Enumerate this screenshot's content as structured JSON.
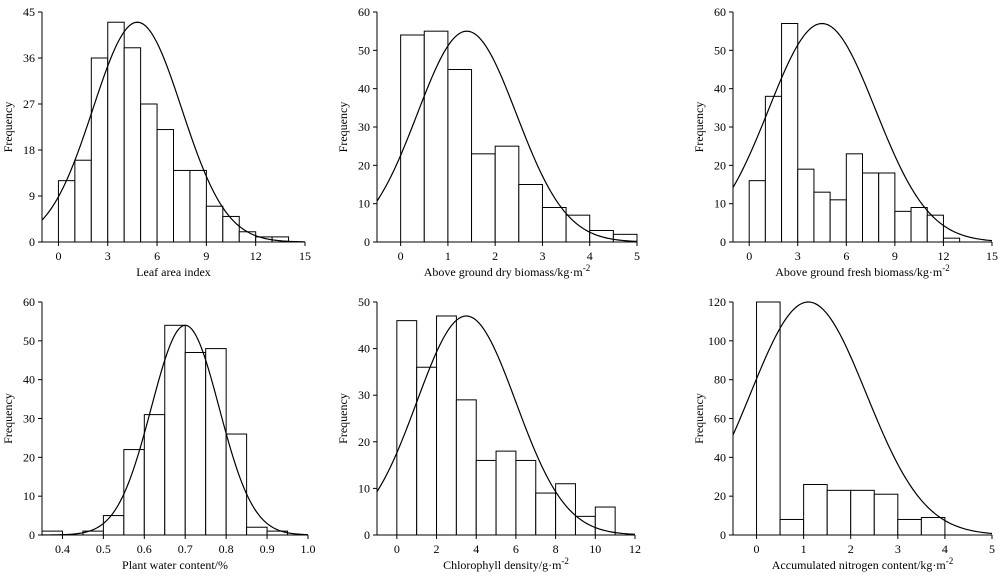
{
  "chart_data": [
    {
      "type": "histogram",
      "ylabel": "Frequency",
      "xlabel": "Leaf area index",
      "xlim": [
        -1,
        15
      ],
      "ylim": [
        0,
        45
      ],
      "xticks": [
        "0",
        "3",
        "6",
        "9",
        "12",
        "15"
      ],
      "yticks": [
        "0",
        "9",
        "18",
        "27",
        "36",
        "45"
      ],
      "bin_width": 1,
      "bins": [
        {
          "x": 0,
          "count": 12
        },
        {
          "x": 1,
          "count": 16
        },
        {
          "x": 2,
          "count": 36
        },
        {
          "x": 3,
          "count": 43
        },
        {
          "x": 4,
          "count": 38
        },
        {
          "x": 5,
          "count": 27
        },
        {
          "x": 6,
          "count": 22
        },
        {
          "x": 7,
          "count": 14
        },
        {
          "x": 8,
          "count": 14
        },
        {
          "x": 9,
          "count": 7
        },
        {
          "x": 10,
          "count": 5
        },
        {
          "x": 11,
          "count": 2
        },
        {
          "x": 12,
          "count": 1
        },
        {
          "x": 13,
          "count": 1
        }
      ],
      "normal_curve": {
        "mean": 4.8,
        "sd": 2.7,
        "peak": 43
      }
    },
    {
      "type": "histogram",
      "ylabel": "Frequency",
      "xlabel": "Above ground dry biomass/kg·m",
      "xlabel_sup": "-2",
      "xlim": [
        -0.5,
        5
      ],
      "ylim": [
        0,
        60
      ],
      "xticks": [
        "0",
        "1",
        "2",
        "3",
        "4",
        "5"
      ],
      "yticks": [
        "0",
        "10",
        "20",
        "30",
        "40",
        "50",
        "60"
      ],
      "bin_width": 0.5,
      "bins": [
        {
          "x": 0,
          "count": 54
        },
        {
          "x": 0.5,
          "count": 55
        },
        {
          "x": 1,
          "count": 45
        },
        {
          "x": 1.5,
          "count": 23
        },
        {
          "x": 2,
          "count": 25
        },
        {
          "x": 2.5,
          "count": 15
        },
        {
          "x": 3,
          "count": 9
        },
        {
          "x": 3.5,
          "count": 7
        },
        {
          "x": 4,
          "count": 3
        },
        {
          "x": 4.5,
          "count": 2
        }
      ],
      "normal_curve": {
        "mean": 1.4,
        "sd": 1.05,
        "peak": 55
      }
    },
    {
      "type": "histogram",
      "ylabel": "Frequency",
      "xlabel": "Above ground fresh biomass/kg·m",
      "xlabel_sup": "-2",
      "xlim": [
        -1,
        15
      ],
      "ylim": [
        0,
        60
      ],
      "xticks": [
        "0",
        "3",
        "6",
        "9",
        "12",
        "15"
      ],
      "yticks": [
        "0",
        "10",
        "20",
        "30",
        "40",
        "50",
        "60"
      ],
      "bin_width": 1,
      "bins": [
        {
          "x": 0,
          "count": 16
        },
        {
          "x": 1,
          "count": 38
        },
        {
          "x": 2,
          "count": 57
        },
        {
          "x": 3,
          "count": 19
        },
        {
          "x": 4,
          "count": 13
        },
        {
          "x": 5,
          "count": 11
        },
        {
          "x": 6,
          "count": 23
        },
        {
          "x": 7,
          "count": 18
        },
        {
          "x": 8,
          "count": 18
        },
        {
          "x": 9,
          "count": 8
        },
        {
          "x": 10,
          "count": 9
        },
        {
          "x": 11,
          "count": 7
        },
        {
          "x": 12,
          "count": 1
        }
      ],
      "normal_curve": {
        "mean": 4.5,
        "sd": 3.3,
        "peak": 57
      }
    },
    {
      "type": "histogram",
      "ylabel": "Frequency",
      "xlabel": "Plant water content/%",
      "xlim": [
        0.35,
        1.0
      ],
      "ylim": [
        0,
        60
      ],
      "xticks": [
        "0.4",
        "0.5",
        "0.6",
        "0.7",
        "0.8",
        "0.9",
        "1.0"
      ],
      "yticks": [
        "0",
        "10",
        "20",
        "30",
        "40",
        "50",
        "60"
      ],
      "bin_width": 0.05,
      "bins": [
        {
          "x": 0.35,
          "count": 1
        },
        {
          "x": 0.4,
          "count": 0
        },
        {
          "x": 0.45,
          "count": 1
        },
        {
          "x": 0.5,
          "count": 5
        },
        {
          "x": 0.55,
          "count": 22
        },
        {
          "x": 0.6,
          "count": 31
        },
        {
          "x": 0.65,
          "count": 54
        },
        {
          "x": 0.7,
          "count": 47
        },
        {
          "x": 0.75,
          "count": 48
        },
        {
          "x": 0.8,
          "count": 26
        },
        {
          "x": 0.85,
          "count": 2
        },
        {
          "x": 0.9,
          "count": 1
        }
      ],
      "normal_curve": {
        "mean": 0.7,
        "sd": 0.083,
        "peak": 54
      }
    },
    {
      "type": "histogram",
      "ylabel": "Frequency",
      "xlabel": "Chlorophyll density/g·m",
      "xlabel_sup": "-2",
      "xlim": [
        -1,
        12
      ],
      "ylim": [
        0,
        50
      ],
      "xticks": [
        "0",
        "2",
        "4",
        "6",
        "8",
        "10",
        "12"
      ],
      "yticks": [
        "0",
        "10",
        "20",
        "30",
        "40",
        "50"
      ],
      "bin_width": 1,
      "bins": [
        {
          "x": 0,
          "count": 46
        },
        {
          "x": 1,
          "count": 36
        },
        {
          "x": 2,
          "count": 47
        },
        {
          "x": 3,
          "count": 29
        },
        {
          "x": 4,
          "count": 16
        },
        {
          "x": 5,
          "count": 18
        },
        {
          "x": 6,
          "count": 16
        },
        {
          "x": 7,
          "count": 9
        },
        {
          "x": 8,
          "count": 11
        },
        {
          "x": 9,
          "count": 4
        },
        {
          "x": 10,
          "count": 6
        }
      ],
      "normal_curve": {
        "mean": 3.5,
        "sd": 2.5,
        "peak": 47
      }
    },
    {
      "type": "histogram",
      "ylabel": "Frequency",
      "xlabel": "Accumulated nitrogen content/kg·m",
      "xlabel_sup": "-2",
      "xlim": [
        -0.5,
        5
      ],
      "ylim": [
        0,
        120
      ],
      "xticks": [
        "0",
        "1",
        "2",
        "3",
        "4",
        "5"
      ],
      "yticks": [
        "0",
        "20",
        "40",
        "60",
        "80",
        "100",
        "120"
      ],
      "bin_width": 0.5,
      "bins": [
        {
          "x": 0,
          "count": 120
        },
        {
          "x": 0.5,
          "count": 8
        },
        {
          "x": 1,
          "count": 26
        },
        {
          "x": 1.5,
          "count": 23
        },
        {
          "x": 2,
          "count": 23
        },
        {
          "x": 2.5,
          "count": 21
        },
        {
          "x": 3,
          "count": 8
        },
        {
          "x": 3.5,
          "count": 9
        }
      ],
      "normal_curve": {
        "mean": 1.1,
        "sd": 1.23,
        "peak": 120
      }
    }
  ]
}
